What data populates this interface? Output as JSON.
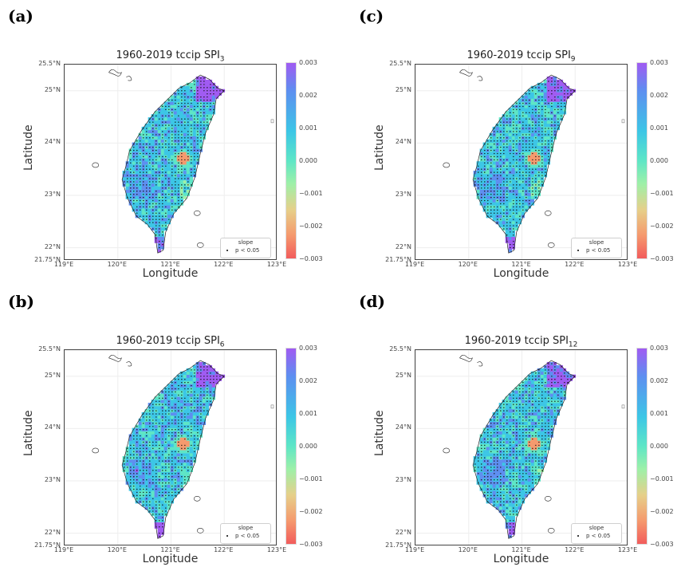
{
  "panels": [
    {
      "letter": "(a)",
      "title_main": "1960-2019 tccip SPI",
      "title_sub": "3",
      "seed": 11
    },
    {
      "letter": "(c)",
      "title_main": "1960-2019 tccip SPI",
      "title_sub": "9",
      "seed": 23
    },
    {
      "letter": "(b)",
      "title_main": "1960-2019 tccip SPI",
      "title_sub": "6",
      "seed": 37
    },
    {
      "letter": "(d)",
      "title_main": "1960-2019 tccip SPI",
      "title_sub": "12",
      "seed": 53
    }
  ],
  "axes": {
    "xlabel": "Longitude",
    "ylabel": "Latitude",
    "xticks": [
      "119°E",
      "120°E",
      "121°E",
      "122°E",
      "123°E"
    ],
    "xtick_values": [
      119,
      120,
      121,
      122,
      123
    ],
    "yticks": [
      "21.75°N",
      "22°N",
      "23°N",
      "24°N",
      "25°N",
      "25.5°N"
    ],
    "ytick_values": [
      21.75,
      22,
      23,
      24,
      25,
      25.5
    ],
    "xlim": [
      119,
      123
    ],
    "ylim": [
      21.75,
      25.5
    ]
  },
  "colorbar": {
    "ticks": [
      "0.003",
      "0.002",
      "0.001",
      "0.000",
      "−0.001",
      "−0.002",
      "−0.003"
    ],
    "tick_values": [
      0.003,
      0.002,
      0.001,
      0.0,
      -0.001,
      -0.002,
      -0.003
    ],
    "colors": [
      "#a05bf2",
      "#5e8ef0",
      "#3cc6e6",
      "#5ee6c6",
      "#9ff0a8",
      "#e6d08a",
      "#f59a6e",
      "#f25c5c"
    ]
  },
  "legend": {
    "title": "slope",
    "label": "p < 0.05"
  },
  "chart_data": {
    "type": "heatmap",
    "title": "1960-2019 tccip SPI slope (panels SPI3, SPI6, SPI9, SPI12)",
    "xlabel": "Longitude",
    "ylabel": "Latitude",
    "xlim": [
      119,
      123
    ],
    "ylim": [
      21.75,
      25.5
    ],
    "colorbar_range": [
      -0.003,
      0.003
    ],
    "notes": "Gridded trend slope over Taiwan; dots mark p < 0.05. High slope (~0.003) in the northeast and far south tip; negative (~-0.002) near 121.2°E, 23.7°N."
  }
}
